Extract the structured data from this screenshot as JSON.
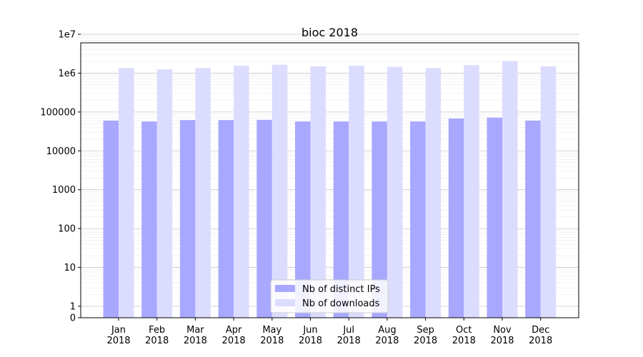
{
  "chart_data": {
    "type": "bar",
    "title": "bioc 2018",
    "xlabel": "",
    "ylabel": "",
    "yscale": "symlog",
    "ylim": [
      0,
      10000000
    ],
    "ytick_labels": [
      "0",
      "1",
      "10",
      "100",
      "1000",
      "10000",
      "100000",
      "1e6",
      "1e7"
    ],
    "categories": [
      "Jan\n2018",
      "Feb\n2018",
      "Mar\n2018",
      "Apr\n2018",
      "May\n2018",
      "Jun\n2018",
      "Jul\n2018",
      "Aug\n2018",
      "Sep\n2018",
      "Oct\n2018",
      "Nov\n2018",
      "Dec\n2018"
    ],
    "series": [
      {
        "name": "Nb of distinct IPs",
        "color": "#a8a8ff",
        "values": [
          60000,
          57000,
          62000,
          62000,
          63000,
          57000,
          57000,
          57000,
          57000,
          68000,
          72000,
          60000
        ]
      },
      {
        "name": "Nb of downloads",
        "color": "#dcdcff",
        "values": [
          1350000,
          1250000,
          1350000,
          1550000,
          1650000,
          1500000,
          1550000,
          1450000,
          1350000,
          1600000,
          2050000,
          1500000
        ]
      }
    ],
    "grid": true,
    "legend_position": "lower-center"
  }
}
